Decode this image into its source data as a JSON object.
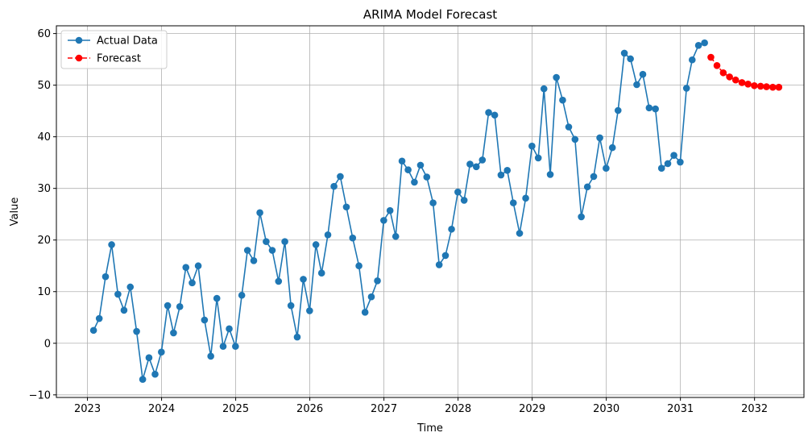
{
  "chart_data": {
    "type": "line",
    "title": "ARIMA Model Forecast",
    "xlabel": "Time",
    "ylabel": "Value",
    "x_ticks": [
      "2023",
      "2024",
      "2025",
      "2026",
      "2027",
      "2028",
      "2029",
      "2030",
      "2031",
      "2032"
    ],
    "y_ticks": [
      -10,
      0,
      10,
      20,
      30,
      40,
      50,
      60
    ],
    "xlim": [
      "2022-08-01",
      "2032-09-01"
    ],
    "ylim": [
      -10.5,
      61.5
    ],
    "grid": true,
    "legend_position": "top-left",
    "series": [
      {
        "name": "Actual Data",
        "color": "#1f77b4",
        "linestyle": "solid",
        "marker": "circle",
        "start_date": "2023-01-31",
        "frequency": "monthly",
        "values": [
          2.5,
          4.8,
          12.9,
          19.1,
          9.5,
          6.4,
          10.9,
          2.3,
          -7.0,
          -2.8,
          -6.0,
          -1.7,
          7.3,
          2.0,
          7.1,
          14.7,
          11.7,
          15.0,
          4.5,
          -2.5,
          8.7,
          -0.6,
          2.8,
          -0.6,
          9.3,
          18.0,
          16.0,
          25.3,
          19.7,
          18.0,
          12.0,
          19.7,
          7.3,
          1.2,
          12.4,
          6.3,
          19.1,
          13.6,
          21.0,
          30.4,
          32.3,
          26.4,
          20.4,
          15.0,
          6.0,
          9.0,
          12.1,
          23.8,
          25.7,
          20.7,
          35.3,
          33.6,
          31.2,
          34.5,
          32.2,
          27.2,
          15.2,
          17.0,
          22.1,
          29.3,
          27.7,
          34.7,
          34.2,
          35.5,
          44.7,
          44.2,
          32.6,
          33.5,
          27.2,
          21.3,
          28.1,
          38.2,
          35.9,
          49.3,
          32.7,
          51.5,
          47.1,
          41.9,
          39.5,
          24.5,
          30.3,
          32.3,
          39.8,
          33.9,
          37.9,
          45.1,
          56.2,
          55.1,
          50.1,
          52.1,
          45.6,
          45.4,
          33.9,
          34.8,
          36.4,
          35.1,
          49.4,
          54.9,
          57.7,
          58.2
        ]
      },
      {
        "name": "Forecast",
        "color": "#ff0000",
        "linestyle": "dashed",
        "marker": "circle",
        "start_date": "2031-05-31",
        "frequency": "monthly",
        "values": [
          55.4,
          53.8,
          52.4,
          51.6,
          51.0,
          50.5,
          50.2,
          49.9,
          49.8,
          49.7,
          49.6,
          49.6
        ]
      }
    ]
  }
}
